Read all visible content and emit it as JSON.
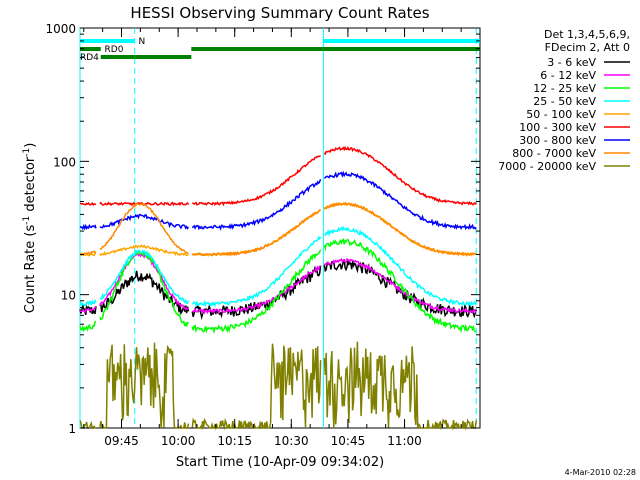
{
  "chart_data": {
    "type": "line",
    "title": "HESSI Observing Summary Count Rates",
    "xlabel": "Start Time (10-Apr-09 09:34:02)",
    "ylabel_main": "Count Rate (s",
    "ylabel_sup1": "-1",
    "ylabel_mid": " detector",
    "ylabel_sup2": "-1",
    "ylabel_end": ")",
    "y_scale": "log",
    "ylim": [
      1,
      1000
    ],
    "xlim_minutes": [
      0,
      106
    ],
    "x_ticks": [
      {
        "label": "09:45",
        "min": 11
      },
      {
        "label": "10:00",
        "min": 26
      },
      {
        "label": "10:15",
        "min": 41
      },
      {
        "label": "10:30",
        "min": 56
      },
      {
        "label": "10:45",
        "min": 71
      },
      {
        "label": "11:00",
        "min": 86
      }
    ],
    "y_ticks": [
      {
        "label": "1",
        "v": 1
      },
      {
        "label": "10",
        "v": 10
      },
      {
        "label": "100",
        "v": 100
      },
      {
        "label": "1000",
        "v": 1000
      }
    ],
    "legend_header": [
      "Det 1,3,4,5,6,9,",
      "FDecim 2, Att 0"
    ],
    "legend_placement": "right",
    "series": [
      {
        "name": "3 - 6 keV",
        "color": "#000000",
        "base": 7.5,
        "peaks": [
          14,
          17
        ],
        "noise": 0.1
      },
      {
        "name": "6 - 12 keV",
        "color": "#ff00ff",
        "base": 7.5,
        "peaks": [
          20,
          18
        ],
        "noise": 0.03
      },
      {
        "name": "12 - 25 keV",
        "color": "#00ff00",
        "base": 5.5,
        "peaks": [
          21,
          25
        ],
        "noise": 0.05
      },
      {
        "name": "25 - 50 keV",
        "color": "#00ffff",
        "base": 8.5,
        "peaks": [
          21,
          31
        ],
        "noise": 0.03
      },
      {
        "name": "50 - 100 keV",
        "color": "#ffa500",
        "base": 20,
        "peaks": [
          23,
          48
        ],
        "noise": 0.02
      },
      {
        "name": "100 - 300 keV",
        "color": "#ff0000",
        "base": 48,
        "peaks": [
          48,
          125
        ],
        "noise": 0.02
      },
      {
        "name": "300 - 800 keV",
        "color": "#0000ff",
        "base": 32,
        "peaks": [
          39,
          80
        ],
        "noise": 0.03
      },
      {
        "name": "800 - 7000 keV",
        "color": "#ff8800",
        "base": 20,
        "peaks": [
          48,
          48
        ],
        "noise": 0.02
      },
      {
        "name": "7000 - 20000 keV",
        "color": "#808000",
        "base": 1,
        "peaks": [
          3.5,
          3.5
        ],
        "noise": 0.15
      }
    ],
    "flag_bars": [
      {
        "label": "N",
        "color": "#00ffff",
        "segments": [
          [
            0,
            14.5
          ],
          [
            64.5,
            106
          ]
        ]
      },
      {
        "label": "RD0",
        "color": "#008000",
        "segments": [
          [
            0,
            5.5
          ],
          [
            29.5,
            106
          ]
        ]
      },
      {
        "label": "RD4",
        "color": "#008000",
        "segments": [
          [
            5.5,
            29.5
          ]
        ]
      }
    ],
    "saa_lines_minutes": [
      0,
      14.5,
      64.5,
      105
    ],
    "footer": "4-Mar-2010 02:28",
    "grid": false
  }
}
